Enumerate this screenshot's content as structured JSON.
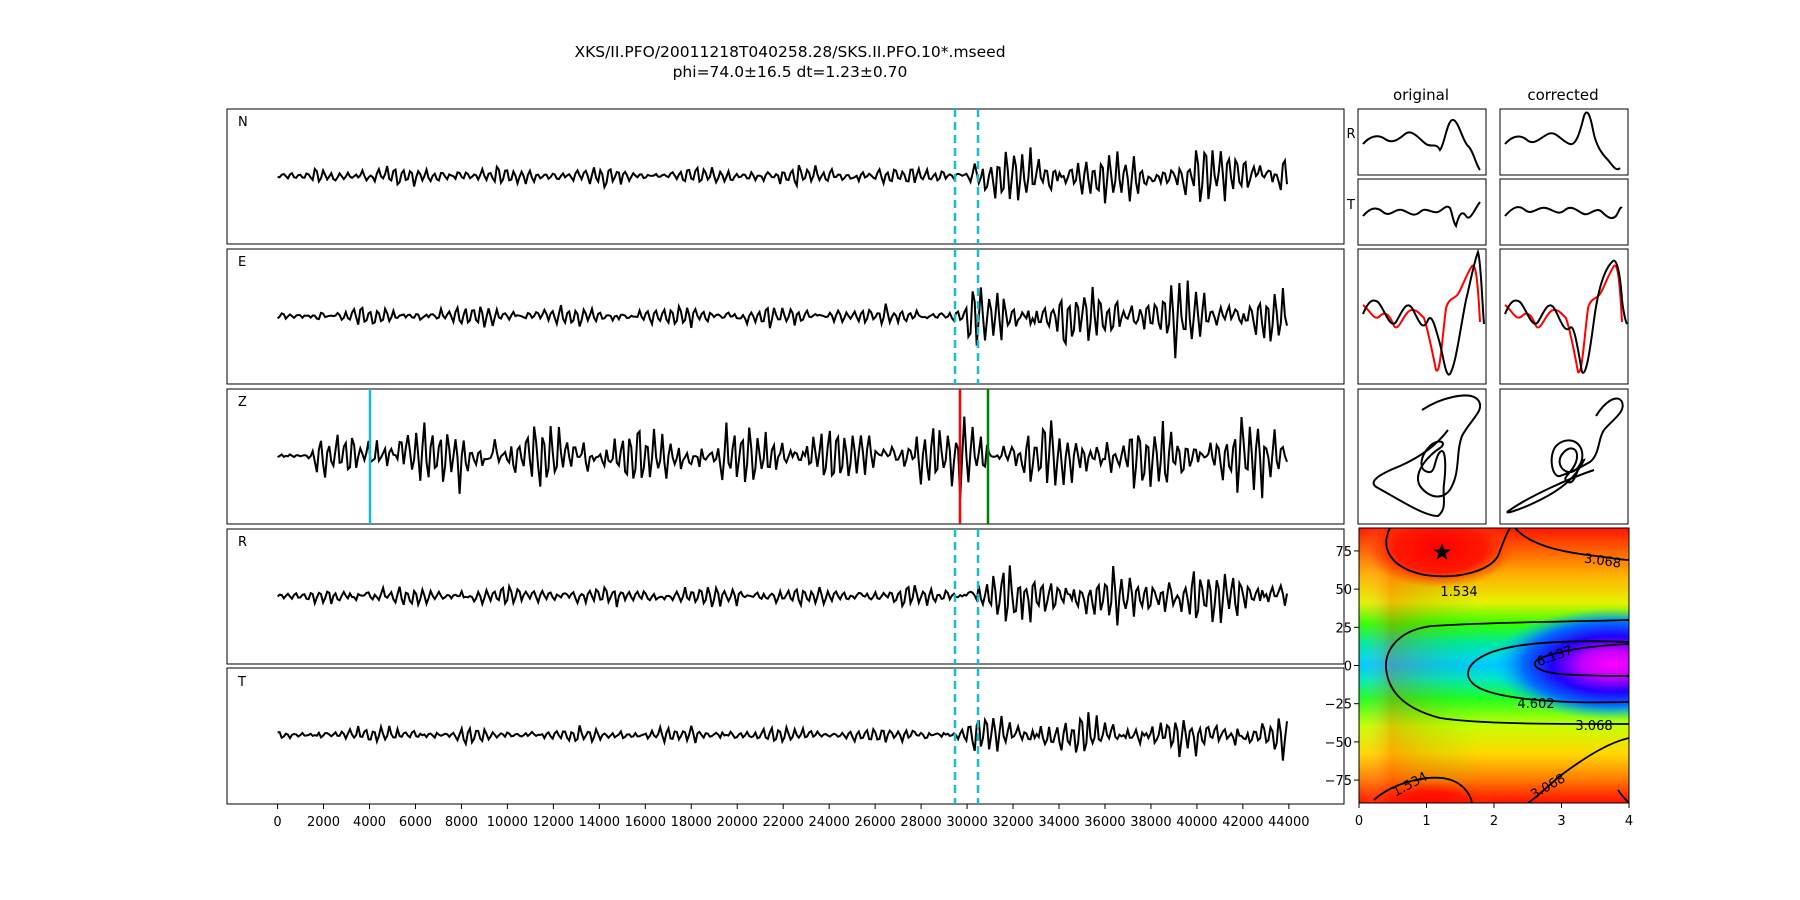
{
  "title_line1": "XKS/II.PFO/20011218T040258.28/SKS.II.PFO.10*.mseed",
  "title_line2": "phi=74.0±16.5 dt=1.23±0.70",
  "chart_data": [
    {
      "type": "line",
      "name": "seismogram-traces",
      "panels": [
        "N",
        "E",
        "Z",
        "R",
        "T"
      ],
      "xlim": [
        -2200,
        46400
      ],
      "xticks": [
        0,
        2000,
        4000,
        6000,
        8000,
        10000,
        12000,
        14000,
        16000,
        18000,
        20000,
        22000,
        24000,
        26000,
        28000,
        30000,
        32000,
        34000,
        36000,
        38000,
        40000,
        42000,
        44000
      ],
      "x_range": [
        0,
        44000
      ],
      "window_markers": {
        "color": "#17becf",
        "style": "dashed",
        "x": [
          29400,
          30450
        ],
        "panels": [
          "N",
          "E",
          "R",
          "T"
        ]
      },
      "phase_markers": [
        {
          "x": 4000,
          "color": "#17becf",
          "panel": "Z"
        },
        {
          "x": 29600,
          "color": "#ff0000",
          "panel": "Z"
        },
        {
          "x": 30800,
          "color": "#008000",
          "panel": "Z"
        }
      ]
    },
    {
      "type": "line",
      "name": "particle-motion-panels",
      "column_titles": [
        "original",
        "corrected"
      ],
      "row_labels": [
        "R",
        "T"
      ]
    },
    {
      "type": "heatmap",
      "name": "splitting-error-surface",
      "xlabel": "",
      "ylabel": "",
      "xlim": [
        0,
        4
      ],
      "ylim": [
        -90,
        90
      ],
      "xticks": [
        "0",
        "1",
        "2",
        "3",
        "4"
      ],
      "yticks": [
        "75",
        "50",
        "25",
        "0",
        "−25",
        "−50",
        "−75"
      ],
      "ytick_values": [
        75,
        50,
        25,
        0,
        -25,
        -50,
        -75
      ],
      "contour_levels": [
        "1.534",
        "3.068",
        "4.602",
        "6.137"
      ],
      "best_fit": {
        "dt": 1.23,
        "phi": 74.0,
        "marker": "star"
      }
    }
  ]
}
